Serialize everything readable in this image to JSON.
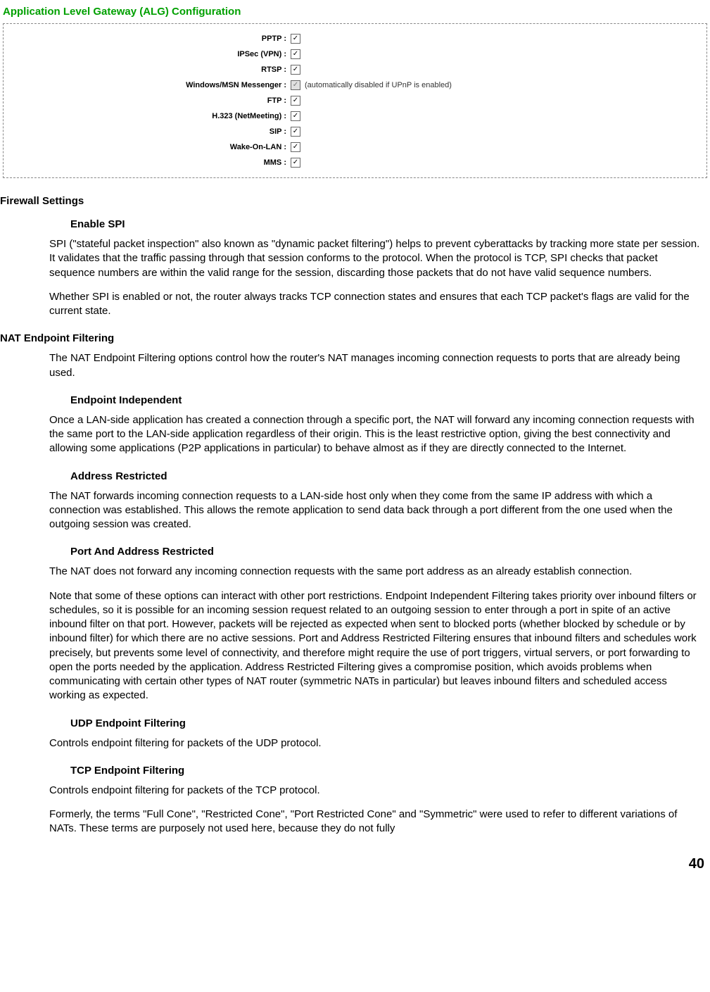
{
  "alg": {
    "title": "Application Level Gateway (ALG) Configuration",
    "rows": [
      {
        "label": "PPTP :",
        "checked": true,
        "disabled": false,
        "note": ""
      },
      {
        "label": "IPSec (VPN) :",
        "checked": true,
        "disabled": false,
        "note": ""
      },
      {
        "label": "RTSP :",
        "checked": true,
        "disabled": false,
        "note": ""
      },
      {
        "label": "Windows/MSN Messenger :",
        "checked": true,
        "disabled": true,
        "note": "(automatically disabled if UPnP is enabled)"
      },
      {
        "label": "FTP :",
        "checked": true,
        "disabled": false,
        "note": ""
      },
      {
        "label": "H.323 (NetMeeting) :",
        "checked": true,
        "disabled": false,
        "note": ""
      },
      {
        "label": "SIP :",
        "checked": true,
        "disabled": false,
        "note": ""
      },
      {
        "label": "Wake-On-LAN :",
        "checked": true,
        "disabled": false,
        "note": ""
      },
      {
        "label": "MMS :",
        "checked": true,
        "disabled": false,
        "note": ""
      }
    ]
  },
  "sections": {
    "firewall_settings": "Firewall Settings",
    "enable_spi": "Enable SPI",
    "spi_p1": "SPI (\"stateful packet inspection\" also known as \"dynamic packet filtering\") helps to prevent cyberattacks by tracking more state per session. It validates that the traffic passing through that session conforms to the protocol. When the protocol is TCP, SPI checks that packet sequence numbers are within the valid range for the session, discarding those packets that do not have valid sequence numbers.",
    "spi_p2": "Whether SPI is enabled or not, the router always tracks TCP connection states and ensures that each TCP packet's flags are valid for the current state.",
    "nat_endpoint": "NAT Endpoint Filtering",
    "nat_intro": "The NAT Endpoint Filtering options control how the router's NAT manages incoming connection requests to ports that are already being used.",
    "endpoint_independent": "Endpoint Independent",
    "ei_body": "Once a LAN-side application has created a connection through a specific port, the NAT will forward any incoming connection requests with the same port to the LAN-side application regardless of their origin. This is the least restrictive option, giving the best connectivity and allowing some applications (P2P applications in particular) to behave almost as if they are directly connected to the Internet.",
    "address_restricted": "Address Restricted",
    "ar_body": "The NAT forwards incoming connection requests to a LAN-side host only when they come from the same IP address with which a connection was established. This allows the remote application to send data back through a port different from the one used when the outgoing session was created.",
    "port_address_restricted": "Port And Address Restricted",
    "par_body1": "The NAT does not forward any incoming connection requests with the same port address as an already establish connection.",
    "par_body2": "Note that some of these options can interact with other port restrictions. Endpoint Independent Filtering takes priority over inbound filters or schedules, so it is possible for an incoming session request related to an outgoing session to enter through a port in spite of an active inbound filter on that port. However, packets will be rejected as expected when sent to blocked ports (whether blocked by schedule or by inbound filter) for which there are no active sessions. Port and Address Restricted Filtering ensures that inbound filters and schedules work precisely, but prevents some level of connectivity, and therefore might require the use of port triggers, virtual servers, or port forwarding to open the ports needed by the application. Address Restricted Filtering gives a compromise position, which avoids problems when communicating with certain other types of NAT router (symmetric NATs in particular) but leaves inbound filters and scheduled access working as expected.",
    "udp_ef": "UDP Endpoint Filtering",
    "udp_body": "Controls endpoint filtering for packets of the UDP protocol.",
    "tcp_ef": "TCP Endpoint Filtering",
    "tcp_body": "Controls endpoint filtering for packets of the TCP protocol.",
    "cone_body": "Formerly, the terms \"Full Cone\", \"Restricted Cone\", \"Port Restricted Cone\" and \"Symmetric\" were used to refer to different variations of NATs. These terms are purposely not used here, because they do not fully"
  },
  "page_number": "40"
}
